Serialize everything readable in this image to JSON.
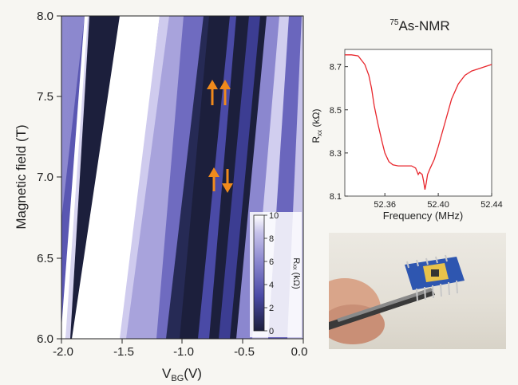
{
  "chart_data": [
    {
      "type": "heatmap",
      "xlabel": "V",
      "xlabel_sub": "BG",
      "xlabel_unit": "(V)",
      "ylabel": "Magnetic field (T)",
      "xlim": [
        -2.0,
        0.0
      ],
      "ylim": [
        6.0,
        8.0
      ],
      "x_ticks": [
        "-2.0",
        "-1.5",
        "-1.0",
        "-0.5",
        "0.0"
      ],
      "y_ticks": [
        "6.0",
        "6.5",
        "7.0",
        "7.5",
        "8.0"
      ],
      "colorbar": {
        "label": "Rₓₓ (kΩ)",
        "range": [
          0,
          10
        ],
        "ticks": [
          "0",
          "2",
          "4",
          "6",
          "8",
          "10"
        ],
        "colors": [
          "#1c1f3c",
          "#4a4aa6",
          "#8b87cf",
          "#c6c2ea",
          "#ffffff"
        ]
      },
      "arrows": [
        {
          "label": "spin-up-up",
          "v": -0.73,
          "b": 7.54,
          "dirs": [
            "up",
            "up"
          ]
        },
        {
          "label": "spin-up-down",
          "v": -0.68,
          "b": 6.97,
          "dirs": [
            "up",
            "down"
          ]
        }
      ],
      "colors": {
        "arrow": "#f08a1c"
      }
    },
    {
      "type": "line",
      "title_sup": "75",
      "title": "As-NMR",
      "xlabel": "Frequency (MHz)",
      "ylabel_main": "R",
      "ylabel_sub": "xx",
      "ylabel_unit": " (kΩ)",
      "xlim": [
        52.33,
        52.44
      ],
      "ylim": [
        8.1,
        8.78
      ],
      "x_ticks": [
        52.36,
        52.4,
        52.44
      ],
      "x_tick_labels": [
        "52.36",
        "52.40",
        "52.44"
      ],
      "y_ticks": [
        8.1,
        8.3,
        8.5,
        8.7
      ],
      "y_tick_labels": [
        "8.1",
        "8.3",
        "8.5",
        "8.7"
      ],
      "color": "#e8262c",
      "series": [
        {
          "x": [
            52.33,
            52.335,
            52.34,
            52.345,
            52.348,
            52.35,
            52.352,
            52.355,
            52.358,
            52.36,
            52.363,
            52.366,
            52.37,
            52.375,
            52.38,
            52.383,
            52.385,
            52.386,
            52.388,
            52.389,
            52.39,
            52.391,
            52.392,
            52.394,
            52.397,
            52.4,
            52.405,
            52.41,
            52.415,
            52.42,
            52.425,
            52.43,
            52.435,
            52.44
          ],
          "y": [
            8.755,
            8.755,
            8.75,
            8.71,
            8.66,
            8.6,
            8.52,
            8.43,
            8.35,
            8.3,
            8.26,
            8.245,
            8.24,
            8.24,
            8.24,
            8.23,
            8.2,
            8.21,
            8.2,
            8.17,
            8.13,
            8.16,
            8.2,
            8.23,
            8.27,
            8.33,
            8.44,
            8.55,
            8.62,
            8.66,
            8.68,
            8.69,
            8.7,
            8.71
          ]
        }
      ]
    }
  ]
}
